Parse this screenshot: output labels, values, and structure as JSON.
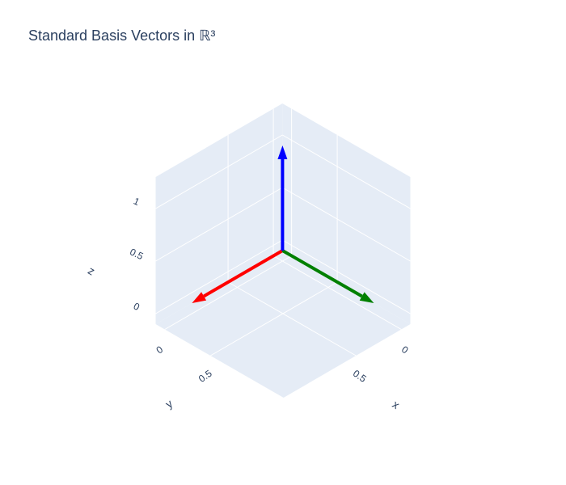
{
  "chart_data": {
    "type": "vector3d",
    "title": "Standard Basis Vectors in ℝ³",
    "xlabel": "x",
    "ylabel": "y",
    "zlabel": "z",
    "xlim": [
      -0.1,
      1.3
    ],
    "ylim": [
      -0.1,
      1.3
    ],
    "zlim": [
      -0.1,
      1.3
    ],
    "xticks": [
      0,
      0.5
    ],
    "yticks": [
      0,
      0.5
    ],
    "zticks": [
      0,
      0.5,
      1
    ],
    "grid": true,
    "series": [
      {
        "color": "red",
        "x": [
          0,
          1
        ],
        "y": [
          0,
          0
        ],
        "z": [
          0,
          0
        ]
      },
      {
        "color": "green",
        "x": [
          0,
          0
        ],
        "y": [
          0,
          1
        ],
        "z": [
          0,
          0
        ]
      },
      {
        "color": "blue",
        "x": [
          0,
          0
        ],
        "y": [
          0,
          0
        ],
        "z": [
          0,
          1
        ]
      }
    ]
  }
}
